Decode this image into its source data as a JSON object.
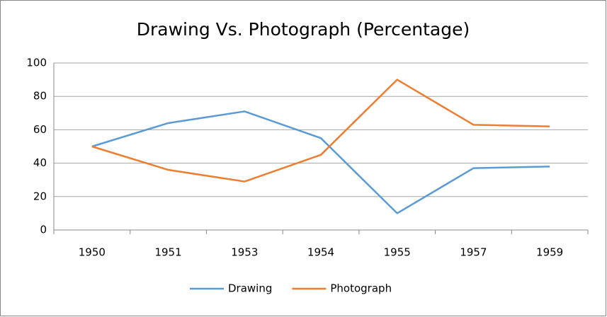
{
  "chart_data": {
    "type": "line",
    "title": "Drawing Vs. Photograph (Percentage)",
    "categories": [
      "1950",
      "1951",
      "1953",
      "1954",
      "1955",
      "1957",
      "1959"
    ],
    "series": [
      {
        "name": "Drawing",
        "color": "#5b9bd5",
        "values": [
          50,
          64,
          71,
          55,
          10,
          37,
          38
        ]
      },
      {
        "name": "Photograph",
        "color": "#ed7d31",
        "values": [
          50,
          36,
          29,
          45,
          90,
          63,
          62
        ]
      }
    ],
    "ylim": [
      0,
      100
    ],
    "yticks": [
      0,
      20,
      40,
      60,
      80,
      100
    ],
    "grid": true,
    "legend": "bottom"
  }
}
